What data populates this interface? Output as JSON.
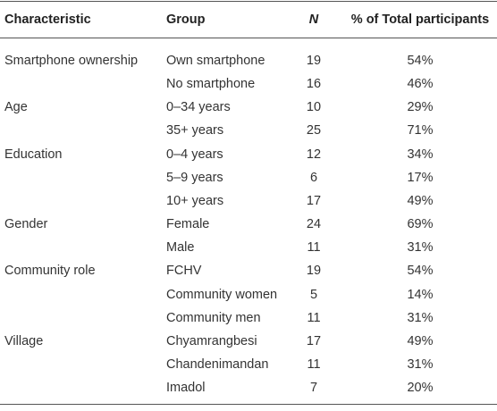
{
  "table": {
    "header": [
      "Characteristic",
      "Group",
      "N",
      "% of Total participants"
    ],
    "rows": [
      {
        "characteristic": "Smartphone ownership",
        "group": "Own smartphone",
        "n": 19,
        "pct": "54%"
      },
      {
        "group": "No smartphone",
        "n": 16,
        "pct": "46%"
      },
      {
        "characteristic": "Age",
        "group": "0–34 years",
        "n": 10,
        "pct": "29%"
      },
      {
        "group": "35+ years",
        "n": 25,
        "pct": "71%"
      },
      {
        "characteristic": "Education",
        "group": "0–4 years",
        "n": 12,
        "pct": "34%"
      },
      {
        "group": "5–9 years",
        "n": 6,
        "pct": "17%"
      },
      {
        "group": "10+ years",
        "n": 17,
        "pct": "49%"
      },
      {
        "characteristic": "Gender",
        "group": "Female",
        "n": 24,
        "pct": "69%"
      },
      {
        "group": "Male",
        "n": 11,
        "pct": "31%"
      },
      {
        "characteristic": "Community role",
        "group": "FCHV",
        "n": 19,
        "pct": "54%"
      },
      {
        "group": "Community women",
        "n": 5,
        "pct": "14%"
      },
      {
        "group": "Community men",
        "n": 11,
        "pct": "31%"
      },
      {
        "characteristic": "Village",
        "group": "Chyamrangbesi",
        "n": 17,
        "pct": "49%"
      },
      {
        "group": "Chandenimandan",
        "n": 11,
        "pct": "31%"
      },
      {
        "group": "Imadol",
        "n": 7,
        "pct": "20%"
      }
    ]
  }
}
